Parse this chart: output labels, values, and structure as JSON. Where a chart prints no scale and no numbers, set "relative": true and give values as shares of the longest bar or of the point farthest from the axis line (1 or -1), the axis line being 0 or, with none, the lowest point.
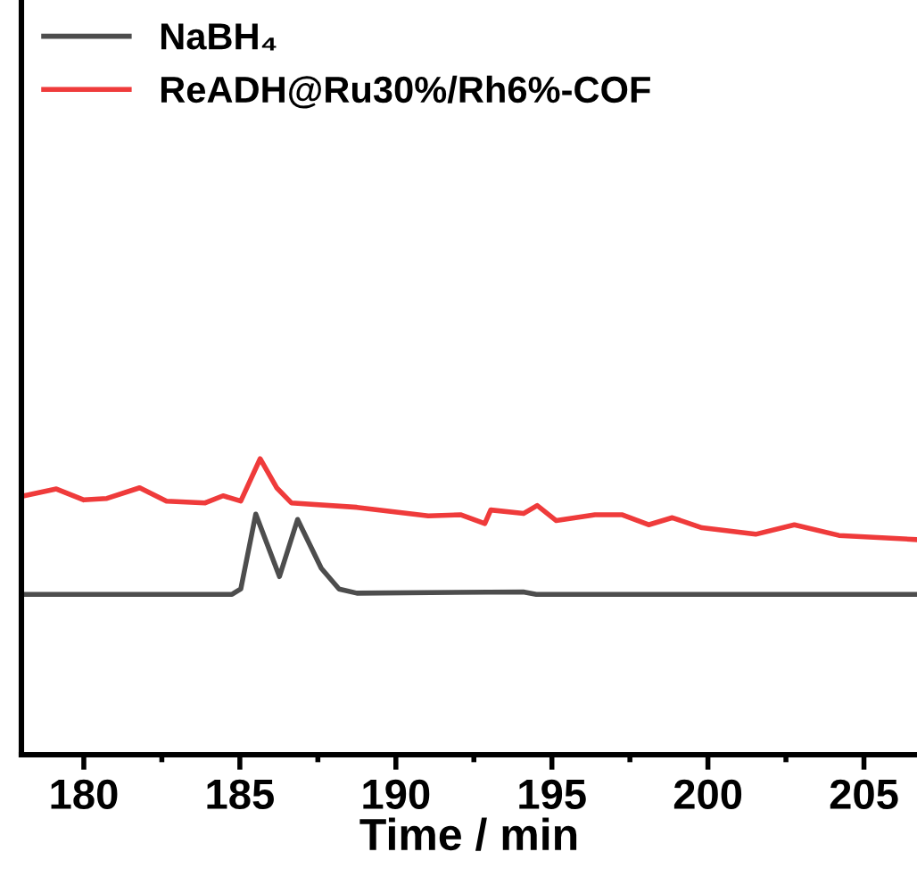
{
  "chart_data": {
    "type": "line",
    "relative": true,
    "xlabel": "Time / min",
    "xlim": [
      178.0,
      206.7
    ],
    "xticks": [
      180,
      {
        "value": 182.5,
        "label": null
      },
      185,
      {
        "value": 187.5,
        "label": null
      },
      190,
      {
        "value": 192.5,
        "label": null
      },
      195,
      {
        "value": 197.5,
        "label": null
      },
      200,
      {
        "value": 202.5,
        "label": null
      },
      205
    ],
    "legend": "top left",
    "grid": false,
    "marker": "none",
    "line_style": "solid",
    "series": [
      {
        "name": "NaBH₄",
        "color": "#4d4d4d",
        "x": [
          178.0,
          184.75,
          185.03,
          185.51,
          186.27,
          186.85,
          187.61,
          188.18,
          188.75,
          194.08,
          194.5,
          206.68
        ],
        "values": [
          0.542,
          0.542,
          0.56,
          0.813,
          0.602,
          0.795,
          0.63,
          0.56,
          0.546,
          0.55,
          0.542,
          0.542
        ]
      },
      {
        "name": "ReADH@Ru30%/Rh6%-COF",
        "color": "#ef3b3b",
        "x": [
          178.0,
          179.12,
          180.0,
          180.74,
          181.79,
          182.65,
          183.89,
          184.46,
          185.03,
          185.65,
          186.18,
          186.65,
          188.75,
          191.04,
          192.07,
          192.85,
          193.04,
          194.09,
          194.53,
          195.14,
          196.38,
          197.24,
          198.1,
          198.86,
          199.81,
          201.53,
          202.77,
          204.2,
          206.68
        ],
        "values": [
          0.873,
          0.898,
          0.861,
          0.866,
          0.902,
          0.857,
          0.851,
          0.875,
          0.857,
          1.0,
          0.902,
          0.851,
          0.836,
          0.807,
          0.811,
          0.781,
          0.827,
          0.815,
          0.842,
          0.791,
          0.811,
          0.811,
          0.777,
          0.801,
          0.767,
          0.745,
          0.777,
          0.741,
          0.727
        ]
      }
    ]
  }
}
